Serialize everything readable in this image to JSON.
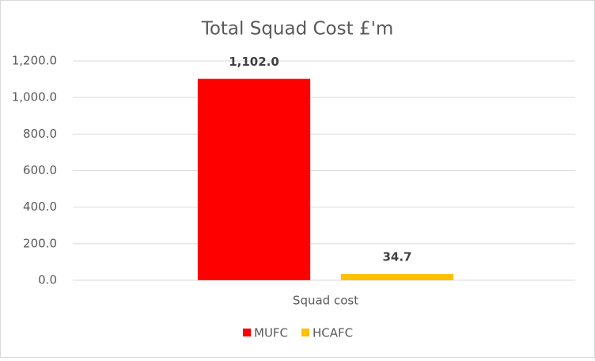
{
  "chart_data": {
    "type": "bar",
    "title": "Total Squad Cost £'m",
    "categories": [
      "Squad cost"
    ],
    "series": [
      {
        "name": "MUFC",
        "color": "#ff0000",
        "values": [
          1102.0
        ],
        "value_labels": [
          "1,102.0"
        ]
      },
      {
        "name": "HCAFC",
        "color": "#ffc000",
        "values": [
          34.7
        ],
        "value_labels": [
          "34.7"
        ]
      }
    ],
    "ylim": [
      0,
      1200
    ],
    "yticks": [
      {
        "value": 0,
        "label": "0.0"
      },
      {
        "value": 200,
        "label": "200.0"
      },
      {
        "value": 400,
        "label": "400.0"
      },
      {
        "value": 600,
        "label": "600.0"
      },
      {
        "value": 800,
        "label": "800.0"
      },
      {
        "value": 1000,
        "label": "1,000.0"
      },
      {
        "value": 1200,
        "label": "1,200.0"
      }
    ],
    "grid": true,
    "legend": "bottom"
  }
}
